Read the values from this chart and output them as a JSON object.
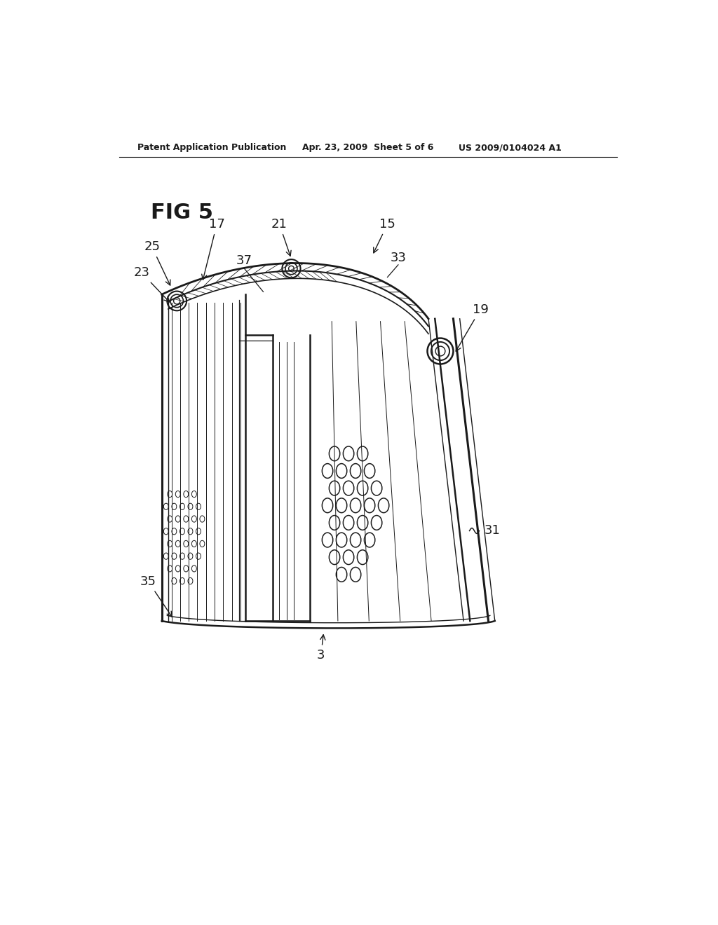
{
  "bg_color": "#ffffff",
  "line_color": "#1a1a1a",
  "header_left": "Patent Application Publication",
  "header_mid": "Apr. 23, 2009  Sheet 5 of 6",
  "header_right": "US 2009/0104024 A1",
  "fig_label": "FIG 5"
}
